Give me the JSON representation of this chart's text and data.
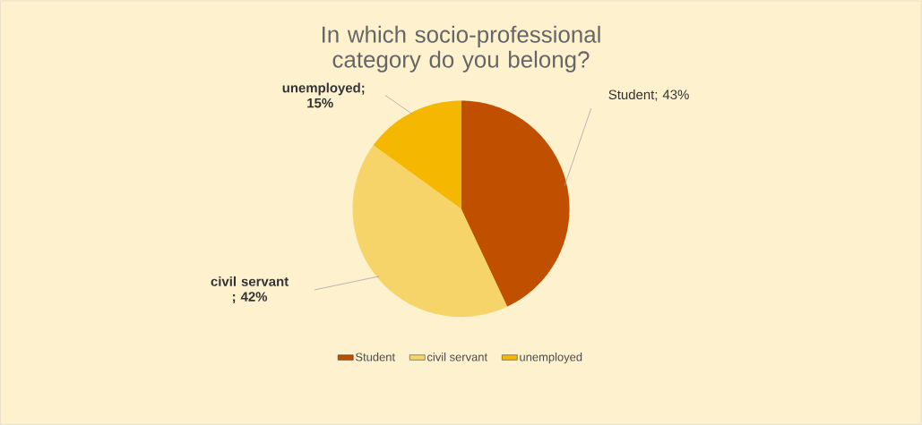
{
  "chart_data": {
    "type": "pie",
    "title": "In which socio-professional category do you belong?",
    "categories": [
      "Student",
      "civil servant",
      "unemployed"
    ],
    "values": [
      43,
      42,
      15
    ],
    "colors": [
      "#c04f00",
      "#f7d46a",
      "#f5b700"
    ],
    "value_labels": [
      "Student; 43%",
      "civil servant ; 42%",
      "unemployed; 15%"
    ],
    "legend": "bottom"
  }
}
